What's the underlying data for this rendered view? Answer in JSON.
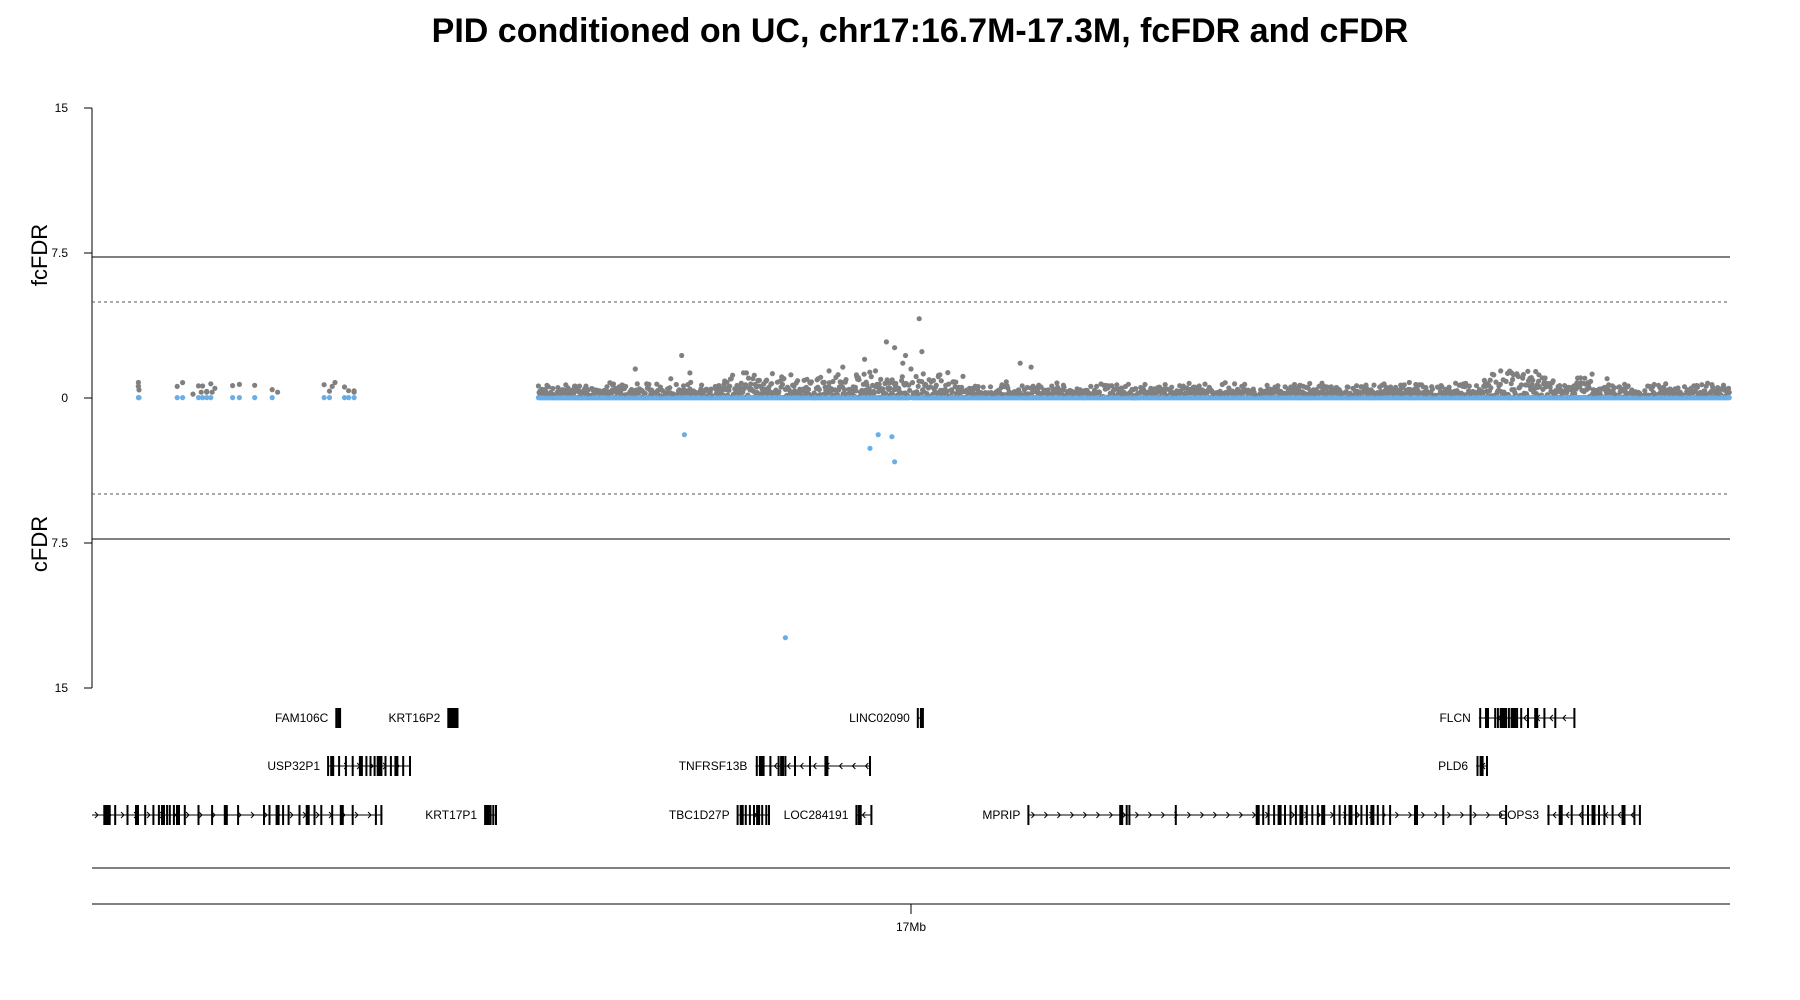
{
  "colors": {
    "fcfdr": "#808080",
    "cfdr": "#6aaee8",
    "ink": "#000000"
  },
  "chart_data": {
    "type": "scatter",
    "title": "PID conditioned on UC, chr17:16.7M-17.3M, fcFDR and cFDR",
    "upper_ylabel": "fcFDR",
    "lower_ylabel": "cFDR",
    "y_ticks": [
      "15",
      "7.5",
      "0",
      "7.5",
      "15"
    ],
    "ylim": [
      -15,
      15
    ],
    "xlim_mb": [
      16.7,
      17.3
    ],
    "x_tick_label": "17Mb",
    "x_tick_value_mb": 17.0,
    "threshold_solid": 7.3,
    "threshold_dashed": 5.0,
    "grid": false,
    "series": [
      {
        "name": "fcFDR",
        "notable_points": [
          {
            "x": 16.717,
            "y": 0.6
          },
          {
            "x": 16.717,
            "y": 0.8
          },
          {
            "x": 16.737,
            "y": 0.2
          },
          {
            "x": 16.74,
            "y": 0.3
          },
          {
            "x": 16.742,
            "y": 0.3
          },
          {
            "x": 16.744,
            "y": 0.3
          },
          {
            "x": 16.745,
            "y": 0.5
          },
          {
            "x": 16.768,
            "y": 0.3
          },
          {
            "x": 16.788,
            "y": 0.6
          },
          {
            "x": 16.789,
            "y": 0.8
          },
          {
            "x": 16.796,
            "y": 0.3
          },
          {
            "x": 16.899,
            "y": 1.5
          },
          {
            "x": 16.912,
            "y": 1.0
          },
          {
            "x": 16.916,
            "y": 2.2
          },
          {
            "x": 16.919,
            "y": 1.3
          },
          {
            "x": 16.956,
            "y": 1.2
          },
          {
            "x": 16.966,
            "y": 1.0
          },
          {
            "x": 16.97,
            "y": 1.4
          },
          {
            "x": 16.975,
            "y": 1.6
          },
          {
            "x": 16.98,
            "y": 1.2
          },
          {
            "x": 16.983,
            "y": 2.0
          },
          {
            "x": 16.987,
            "y": 1.4
          },
          {
            "x": 16.991,
            "y": 2.9
          },
          {
            "x": 16.994,
            "y": 2.6
          },
          {
            "x": 16.997,
            "y": 1.8
          },
          {
            "x": 16.998,
            "y": 2.2
          },
          {
            "x": 17.0,
            "y": 1.5
          },
          {
            "x": 17.003,
            "y": 4.1
          },
          {
            "x": 17.004,
            "y": 2.4
          },
          {
            "x": 17.01,
            "y": 1.1
          },
          {
            "x": 17.04,
            "y": 1.8
          },
          {
            "x": 17.044,
            "y": 1.6
          },
          {
            "x": 17.216,
            "y": 1.4
          },
          {
            "x": 17.22,
            "y": 1.3
          },
          {
            "x": 17.23,
            "y": 1.2
          },
          {
            "x": 17.255,
            "y": 1.0
          }
        ]
      },
      {
        "name": "cFDR",
        "notable_points": [
          {
            "x": 16.917,
            "y": -1.9
          },
          {
            "x": 16.954,
            "y": -12.4
          },
          {
            "x": 16.985,
            "y": -2.6
          },
          {
            "x": 16.988,
            "y": -1.9
          },
          {
            "x": 16.993,
            "y": -2.0
          },
          {
            "x": 16.994,
            "y": -3.3
          }
        ]
      }
    ],
    "genes": [
      {
        "label": "FAM106C",
        "start": 16.7895,
        "end": 16.7905,
        "row": 0,
        "dir": "none",
        "exons": [
          16.7895,
          16.7905
        ]
      },
      {
        "label": "KRT16P2",
        "start": 16.8305,
        "end": 16.8335,
        "row": 0,
        "dir": "none",
        "exons": [
          16.8305,
          16.8312,
          16.8318,
          16.8324,
          16.833,
          16.8335
        ]
      },
      {
        "label": "LINC02090",
        "start": 17.0025,
        "end": 17.004,
        "row": 0,
        "dir": "none",
        "exons": [
          17.0025,
          17.004
        ]
      },
      {
        "label": "FLCN",
        "start": 17.208,
        "end": 17.243,
        "row": 0,
        "dir": "left",
        "exons": [
          17.2085,
          17.211,
          17.214,
          17.215,
          17.216,
          17.217,
          17.218,
          17.219,
          17.22,
          17.221,
          17.222,
          17.2235,
          17.226,
          17.229,
          17.232,
          17.236,
          17.243
        ]
      },
      {
        "label": "USP32P1",
        "start": 16.7865,
        "end": 16.8165,
        "row": 1,
        "dir": "right",
        "exons": [
          16.7865,
          16.788,
          16.7905,
          16.793,
          16.7955,
          16.7985,
          16.8005,
          16.802,
          16.8035,
          16.805,
          16.806,
          16.8075,
          16.8095,
          16.8115,
          16.814,
          16.8165
        ]
      },
      {
        "label": "TNFRSF13B",
        "start": 16.943,
        "end": 16.985,
        "row": 1,
        "dir": "left",
        "exons": [
          16.9435,
          16.945,
          16.946,
          16.9485,
          16.9515,
          16.9528,
          16.954,
          16.9575,
          16.963,
          16.969,
          16.985
        ]
      },
      {
        "label": "PLD6",
        "start": 17.207,
        "end": 17.211,
        "row": 1,
        "dir": "left",
        "exons": [
          17.2075,
          17.209,
          17.211
        ]
      },
      {
        "label": "TBC1D27P",
        "start": 16.9365,
        "end": 16.948,
        "row": 2,
        "dir": "right",
        "exons": [
          16.9365,
          16.938,
          16.9395,
          16.941,
          16.9425,
          16.944,
          16.9455,
          16.947,
          16.948
        ]
      },
      {
        "label": "LOC284191",
        "start": 16.98,
        "end": 16.9855,
        "row": 2,
        "dir": "left",
        "exons": [
          16.98,
          16.9812,
          16.9855
        ]
      },
      {
        "label": "MPRIP",
        "start": 17.043,
        "end": 17.218,
        "row": 2,
        "dir": "right",
        "exons": [
          17.043,
          17.077,
          17.079,
          17.08,
          17.097,
          17.127,
          17.129,
          17.131,
          17.133,
          17.135,
          17.137,
          17.139,
          17.141,
          17.143,
          17.145,
          17.147,
          17.149,
          17.151,
          17.155,
          17.157,
          17.159,
          17.161,
          17.163,
          17.165,
          17.167,
          17.169,
          17.171,
          17.173,
          17.1755,
          17.185,
          17.195,
          17.205,
          17.218
        ]
      },
      {
        "label": "COPS3",
        "start": 17.233,
        "end": 17.267,
        "row": 2,
        "dir": "left",
        "exons": [
          17.2335,
          17.238,
          17.242,
          17.246,
          17.248,
          17.25,
          17.252,
          17.254,
          17.257,
          17.261,
          17.265,
          17.267
        ]
      },
      {
        "label": "",
        "start": 16.7,
        "end": 16.806,
        "row": 2,
        "dir": "right",
        "exons": [
          16.7045,
          16.7055,
          16.7065,
          16.7085,
          16.713,
          16.7165,
          16.7195,
          16.7225,
          16.7245,
          16.726,
          16.7275,
          16.7285,
          16.73,
          16.7315,
          16.734,
          16.739,
          16.744,
          16.749,
          16.7535,
          16.763,
          16.765,
          16.768,
          16.77,
          16.772,
          16.776,
          16.779,
          16.7815,
          16.784,
          16.788,
          16.7915,
          16.7955,
          16.804,
          16.806
        ]
      },
      {
        "label": "KRT17P1",
        "start": 16.844,
        "end": 16.848,
        "row": 2,
        "dir": "none",
        "exons": [
          16.844,
          16.845,
          16.846,
          16.847,
          16.848
        ]
      }
    ]
  }
}
